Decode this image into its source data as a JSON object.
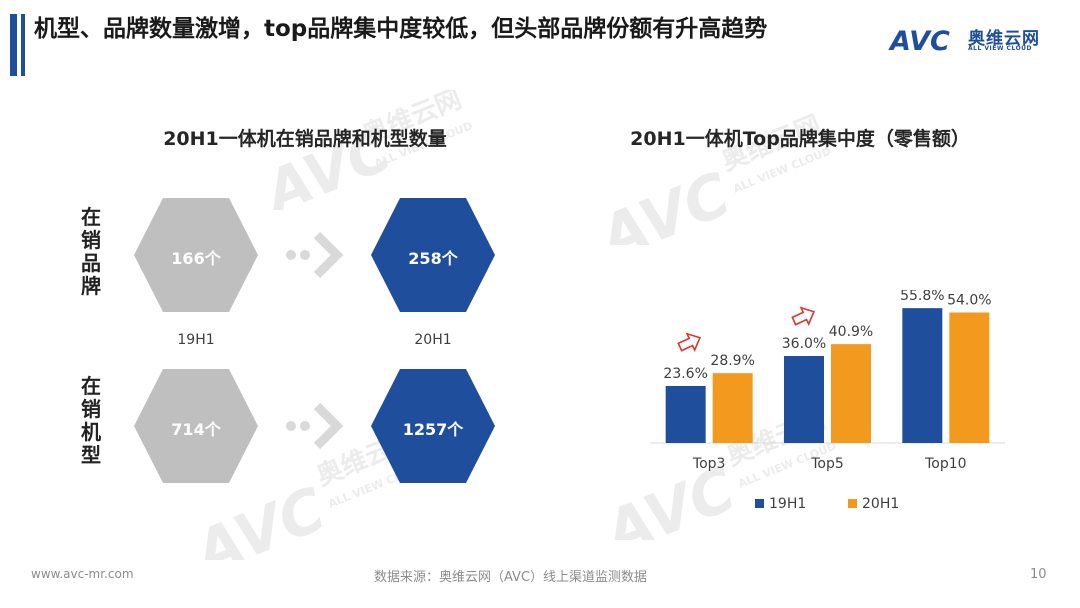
{
  "header": {
    "title": "机型、品牌数量激增，top品牌集中度较低，但头部品牌份额有升高趋势",
    "logo_main": "奥维云网",
    "logo_sub": "ALL VIEW CLOUD",
    "logo_letters": "AVC"
  },
  "left_panel": {
    "title": "20H1一体机在销品牌和机型数量",
    "rows": [
      {
        "label": "在销品牌",
        "before": "166个",
        "after": "258个"
      },
      {
        "label": "在销机型",
        "before": "714个",
        "after": "1257个"
      }
    ],
    "period_before": "19H1",
    "period_after": "20H1"
  },
  "right_panel": {
    "title": "20H1一体机Top品牌集中度（零售额）"
  },
  "chart_data": {
    "type": "bar",
    "categories": [
      "Top3",
      "Top5",
      "Top10"
    ],
    "series": [
      {
        "name": "19H1",
        "values": [
          23.6,
          36.0,
          55.8
        ],
        "labels": [
          "23.6%",
          "36.0%",
          "55.8%"
        ],
        "color": "#1f4e9c"
      },
      {
        "name": "20H1",
        "values": [
          28.9,
          40.9,
          54.0
        ],
        "labels": [
          "28.9%",
          "40.9%",
          "54.0%"
        ],
        "color": "#f39a1e"
      }
    ],
    "ylim": [
      0,
      60
    ],
    "grid": false,
    "legend": "bottom",
    "annotations": [
      "up-arrow-top3",
      "up-arrow-top5"
    ]
  },
  "footer": {
    "website": "www.avc-mr.com",
    "source": "数据来源：奥维云网（AVC）线上渠道监测数据",
    "page": "10"
  },
  "colors": {
    "brand_blue": "#1f4e9c",
    "orange": "#f39a1e",
    "hex_gray": "#bfbfbf",
    "arrow_red": "#e0352b"
  }
}
